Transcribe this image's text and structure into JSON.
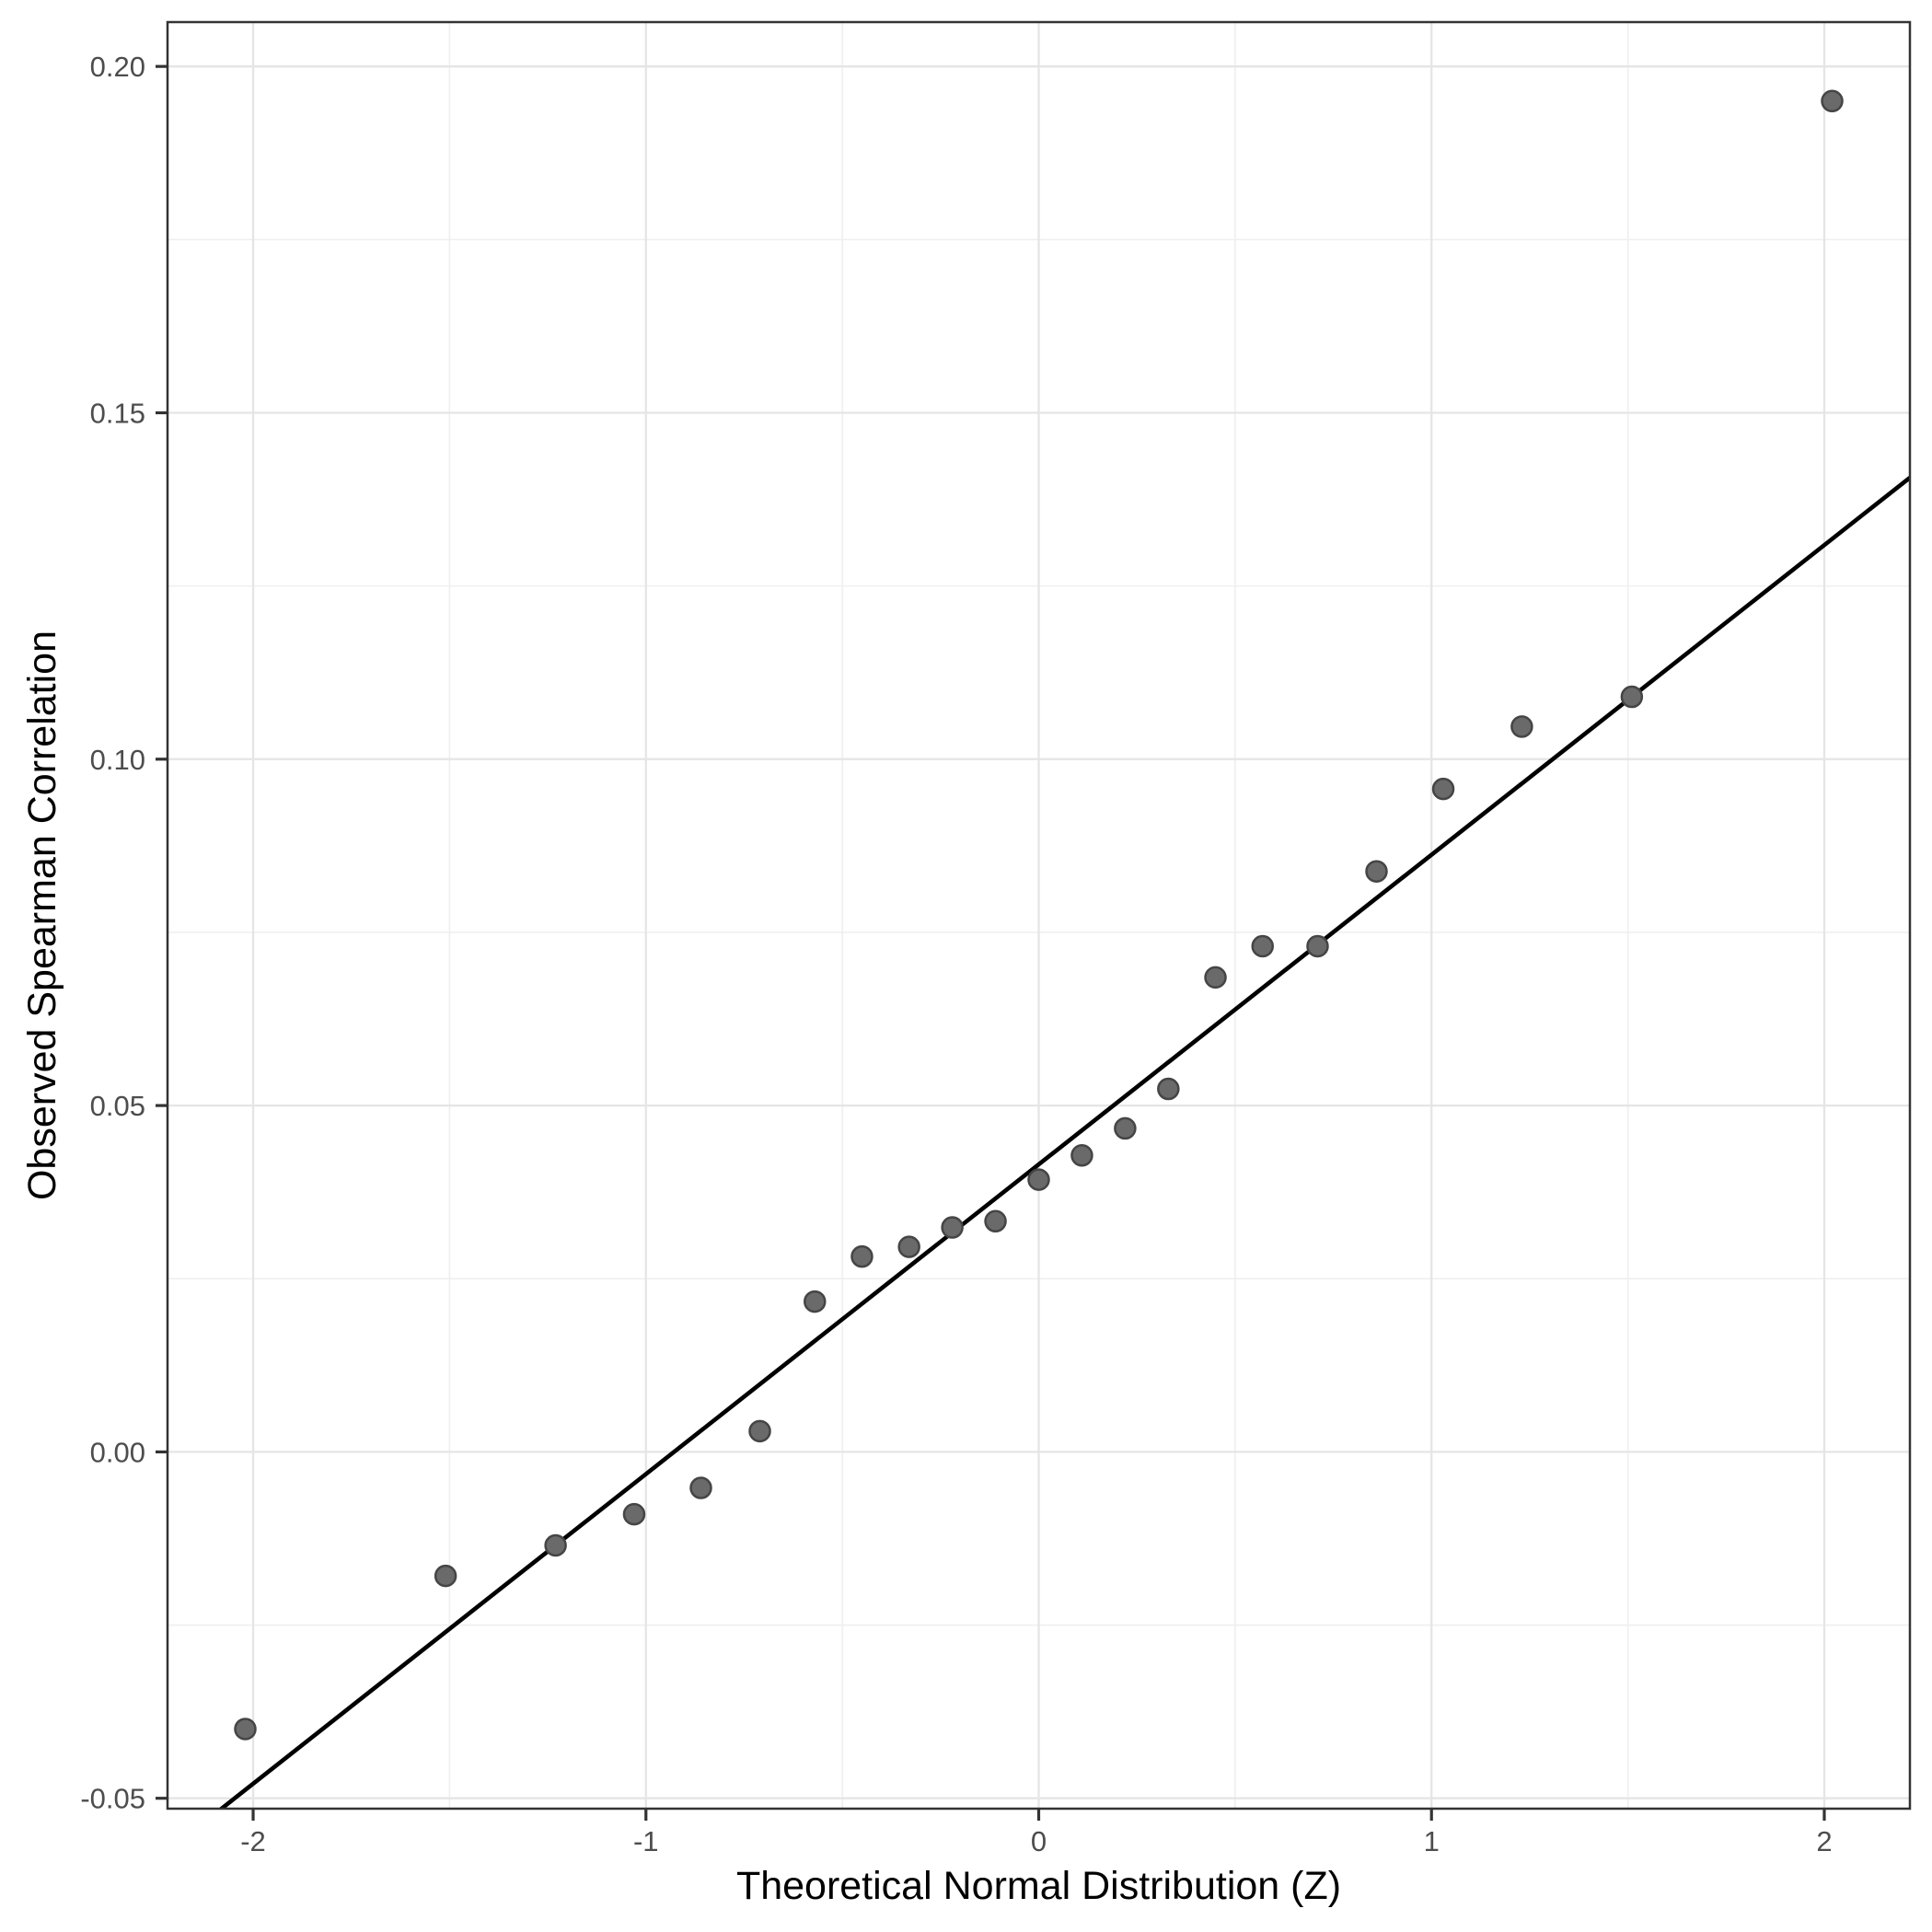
{
  "chart_data": {
    "type": "scatter",
    "title": "",
    "xlabel": "Theoretical Normal Distribution (Z)",
    "ylabel": "Observed Spearman Correlation",
    "xlim": [
      -2.218,
      2.218
    ],
    "ylim": [
      -0.0515,
      0.2064
    ],
    "x_ticks": [
      -2,
      -1,
      0,
      1,
      2
    ],
    "x_tick_labels": [
      "-2",
      "-1",
      "0",
      "1",
      "2"
    ],
    "x_minor_gridlines": [
      -1.5,
      -0.5,
      0.5,
      1.5
    ],
    "y_ticks": [
      -0.05,
      0.0,
      0.05,
      0.1,
      0.15,
      0.2
    ],
    "y_tick_labels": [
      "-0.05",
      "0.00",
      "0.05",
      "0.10",
      "0.15",
      "0.20"
    ],
    "y_minor_gridlines": [
      -0.025,
      0.025,
      0.075,
      0.125,
      0.175
    ],
    "grid": "major+minor",
    "legend_position": "none",
    "points": [
      {
        "x": -2.02,
        "y": -0.04
      },
      {
        "x": -1.51,
        "y": -0.0179
      },
      {
        "x": -1.23,
        "y": -0.0135
      },
      {
        "x": -1.03,
        "y": -0.009
      },
      {
        "x": -0.86,
        "y": -0.0052
      },
      {
        "x": -0.71,
        "y": 0.003
      },
      {
        "x": -0.57,
        "y": 0.0217
      },
      {
        "x": -0.45,
        "y": 0.0282
      },
      {
        "x": -0.33,
        "y": 0.0296
      },
      {
        "x": -0.22,
        "y": 0.0324
      },
      {
        "x": -0.11,
        "y": 0.0333
      },
      {
        "x": 0.0,
        "y": 0.0393
      },
      {
        "x": 0.11,
        "y": 0.0428
      },
      {
        "x": 0.22,
        "y": 0.0467
      },
      {
        "x": 0.33,
        "y": 0.0524
      },
      {
        "x": 0.45,
        "y": 0.0685
      },
      {
        "x": 0.57,
        "y": 0.073
      },
      {
        "x": 0.71,
        "y": 0.073
      },
      {
        "x": 0.86,
        "y": 0.0838
      },
      {
        "x": 1.03,
        "y": 0.0957
      },
      {
        "x": 1.23,
        "y": 0.1047
      },
      {
        "x": 1.51,
        "y": 0.109
      },
      {
        "x": 2.02,
        "y": 0.195
      }
    ],
    "reference_line": {
      "intercept": 0.0415,
      "slope": 0.0447
    }
  },
  "style": {
    "background": "#ffffff",
    "panel_background": "#ffffff",
    "panel_border": "#333333",
    "grid_major": "#e5e5e5",
    "grid_minor": "#efefef",
    "tick_mark": "#333333",
    "tick_label_color": "#4d4d4d",
    "axis_title_color": "#000000",
    "point_fill": "#6a6a6a",
    "point_stroke": "#454545",
    "reference_line_color": "#000000"
  }
}
